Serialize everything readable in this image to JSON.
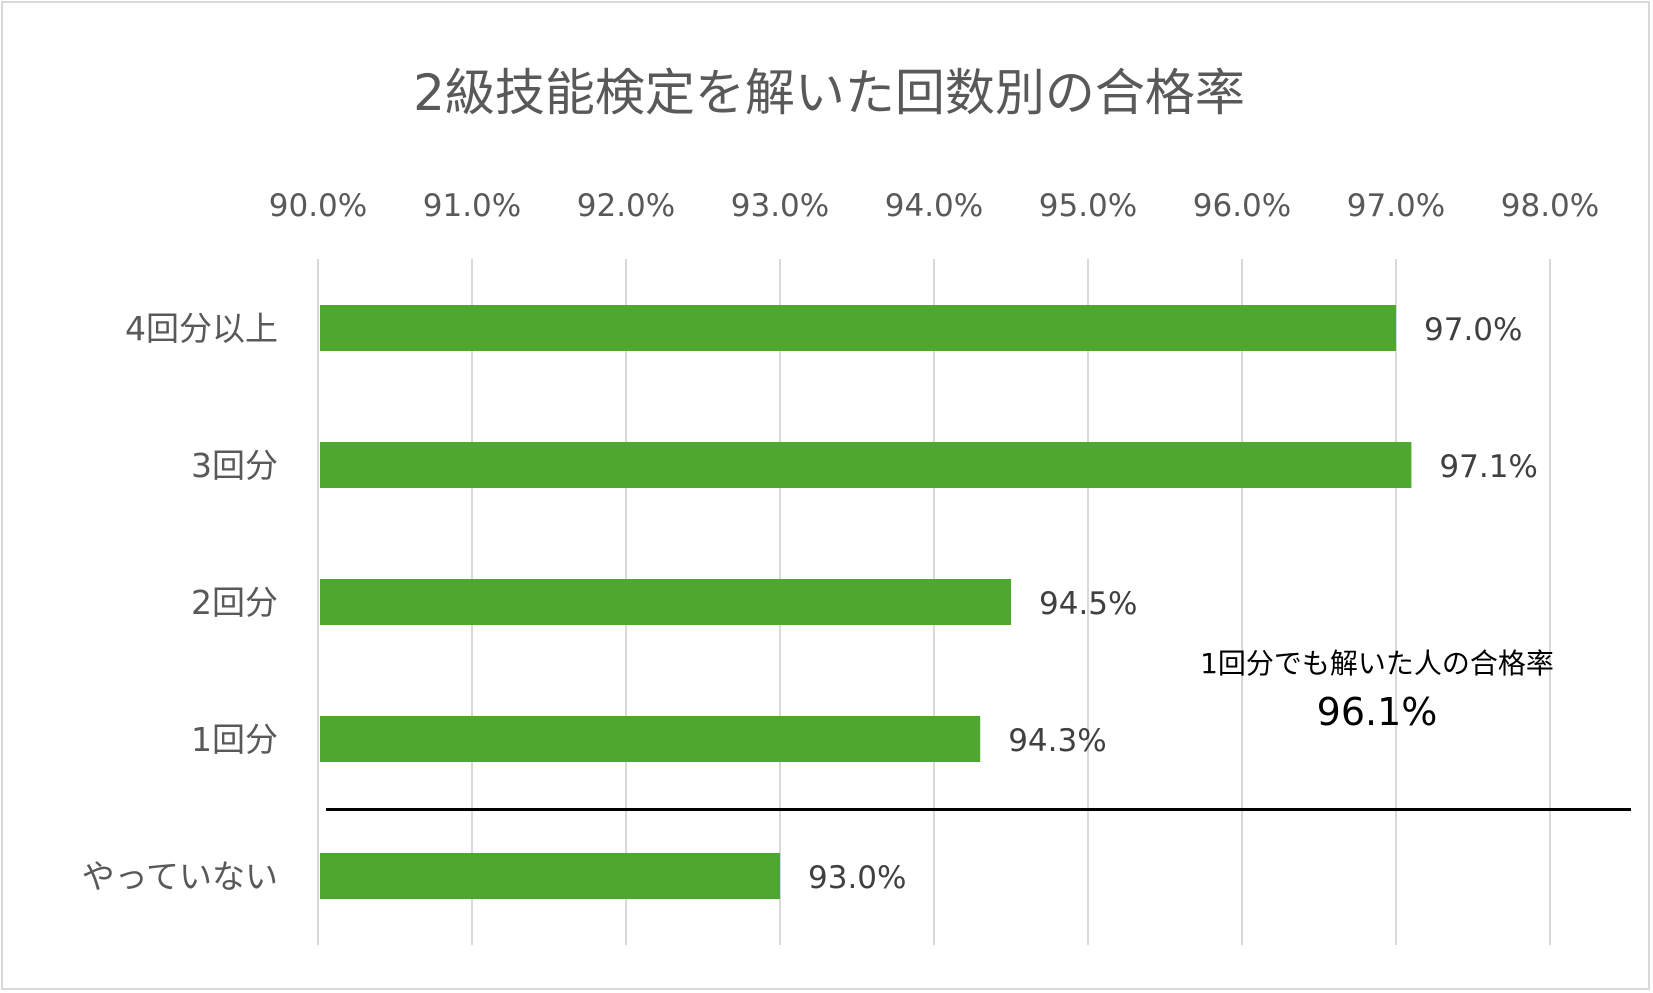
{
  "chart_data": {
    "type": "bar",
    "orientation": "horizontal",
    "title": "2級技能検定を解いた回数別の合格率",
    "xlim": [
      0.9,
      0.98
    ],
    "x_ticks": [
      0.9,
      0.91,
      0.92,
      0.93,
      0.94,
      0.95,
      0.96,
      0.97,
      0.98
    ],
    "x_tick_labels": [
      "90.0%",
      "91.0%",
      "92.0%",
      "93.0%",
      "94.0%",
      "95.0%",
      "96.0%",
      "97.0%",
      "98.0%"
    ],
    "x_axis_position": "top",
    "grid": true,
    "bar_color": "#4ea72e",
    "categories": [
      "4回分以上",
      "3回分",
      "2回分",
      "1回分",
      "やっていない"
    ],
    "values": [
      0.97,
      0.971,
      0.945,
      0.943,
      0.93
    ],
    "value_labels": [
      "97.0%",
      "97.1%",
      "94.5%",
      "94.3%",
      "93.0%"
    ],
    "separator_after_category": "1回分",
    "annotation": {
      "text": "1回分でも解いた人の合格率",
      "value": "96.1%"
    }
  }
}
